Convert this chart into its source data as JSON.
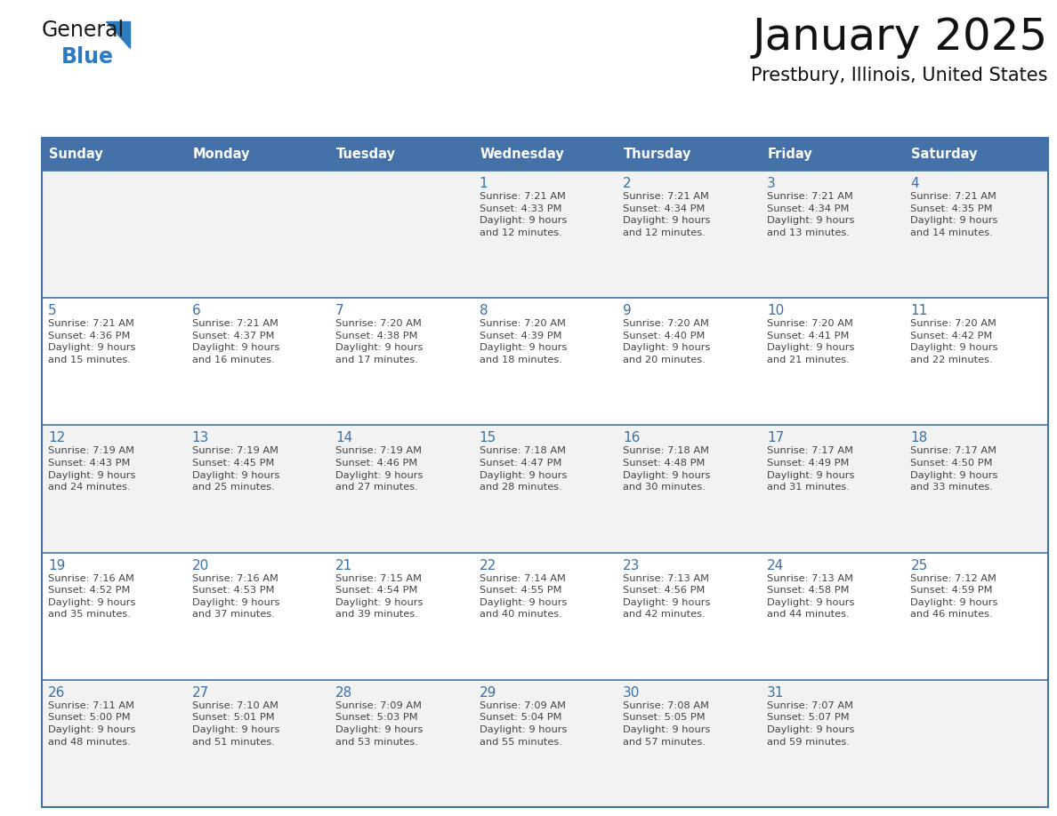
{
  "title": "January 2025",
  "subtitle": "Prestbury, Illinois, United States",
  "header_bg": "#4472a8",
  "header_text_color": "#ffffff",
  "cell_bg_odd": "#f2f2f2",
  "cell_bg_even": "#ffffff",
  "day_number_color": "#3a70a8",
  "cell_text_color": "#444444",
  "row_line_color": "#4472a8",
  "outer_line_color": "#4472a8",
  "logo_text_color": "#1a1a1a",
  "logo_blue_color": "#2e7bbf",
  "logo_triangle_color": "#2e7bbf",
  "days_of_week": [
    "Sunday",
    "Monday",
    "Tuesday",
    "Wednesday",
    "Thursday",
    "Friday",
    "Saturday"
  ],
  "weeks": [
    [
      {
        "day": "",
        "info": ""
      },
      {
        "day": "",
        "info": ""
      },
      {
        "day": "",
        "info": ""
      },
      {
        "day": "1",
        "info": "Sunrise: 7:21 AM\nSunset: 4:33 PM\nDaylight: 9 hours\nand 12 minutes."
      },
      {
        "day": "2",
        "info": "Sunrise: 7:21 AM\nSunset: 4:34 PM\nDaylight: 9 hours\nand 12 minutes."
      },
      {
        "day": "3",
        "info": "Sunrise: 7:21 AM\nSunset: 4:34 PM\nDaylight: 9 hours\nand 13 minutes."
      },
      {
        "day": "4",
        "info": "Sunrise: 7:21 AM\nSunset: 4:35 PM\nDaylight: 9 hours\nand 14 minutes."
      }
    ],
    [
      {
        "day": "5",
        "info": "Sunrise: 7:21 AM\nSunset: 4:36 PM\nDaylight: 9 hours\nand 15 minutes."
      },
      {
        "day": "6",
        "info": "Sunrise: 7:21 AM\nSunset: 4:37 PM\nDaylight: 9 hours\nand 16 minutes."
      },
      {
        "day": "7",
        "info": "Sunrise: 7:20 AM\nSunset: 4:38 PM\nDaylight: 9 hours\nand 17 minutes."
      },
      {
        "day": "8",
        "info": "Sunrise: 7:20 AM\nSunset: 4:39 PM\nDaylight: 9 hours\nand 18 minutes."
      },
      {
        "day": "9",
        "info": "Sunrise: 7:20 AM\nSunset: 4:40 PM\nDaylight: 9 hours\nand 20 minutes."
      },
      {
        "day": "10",
        "info": "Sunrise: 7:20 AM\nSunset: 4:41 PM\nDaylight: 9 hours\nand 21 minutes."
      },
      {
        "day": "11",
        "info": "Sunrise: 7:20 AM\nSunset: 4:42 PM\nDaylight: 9 hours\nand 22 minutes."
      }
    ],
    [
      {
        "day": "12",
        "info": "Sunrise: 7:19 AM\nSunset: 4:43 PM\nDaylight: 9 hours\nand 24 minutes."
      },
      {
        "day": "13",
        "info": "Sunrise: 7:19 AM\nSunset: 4:45 PM\nDaylight: 9 hours\nand 25 minutes."
      },
      {
        "day": "14",
        "info": "Sunrise: 7:19 AM\nSunset: 4:46 PM\nDaylight: 9 hours\nand 27 minutes."
      },
      {
        "day": "15",
        "info": "Sunrise: 7:18 AM\nSunset: 4:47 PM\nDaylight: 9 hours\nand 28 minutes."
      },
      {
        "day": "16",
        "info": "Sunrise: 7:18 AM\nSunset: 4:48 PM\nDaylight: 9 hours\nand 30 minutes."
      },
      {
        "day": "17",
        "info": "Sunrise: 7:17 AM\nSunset: 4:49 PM\nDaylight: 9 hours\nand 31 minutes."
      },
      {
        "day": "18",
        "info": "Sunrise: 7:17 AM\nSunset: 4:50 PM\nDaylight: 9 hours\nand 33 minutes."
      }
    ],
    [
      {
        "day": "19",
        "info": "Sunrise: 7:16 AM\nSunset: 4:52 PM\nDaylight: 9 hours\nand 35 minutes."
      },
      {
        "day": "20",
        "info": "Sunrise: 7:16 AM\nSunset: 4:53 PM\nDaylight: 9 hours\nand 37 minutes."
      },
      {
        "day": "21",
        "info": "Sunrise: 7:15 AM\nSunset: 4:54 PM\nDaylight: 9 hours\nand 39 minutes."
      },
      {
        "day": "22",
        "info": "Sunrise: 7:14 AM\nSunset: 4:55 PM\nDaylight: 9 hours\nand 40 minutes."
      },
      {
        "day": "23",
        "info": "Sunrise: 7:13 AM\nSunset: 4:56 PM\nDaylight: 9 hours\nand 42 minutes."
      },
      {
        "day": "24",
        "info": "Sunrise: 7:13 AM\nSunset: 4:58 PM\nDaylight: 9 hours\nand 44 minutes."
      },
      {
        "day": "25",
        "info": "Sunrise: 7:12 AM\nSunset: 4:59 PM\nDaylight: 9 hours\nand 46 minutes."
      }
    ],
    [
      {
        "day": "26",
        "info": "Sunrise: 7:11 AM\nSunset: 5:00 PM\nDaylight: 9 hours\nand 48 minutes."
      },
      {
        "day": "27",
        "info": "Sunrise: 7:10 AM\nSunset: 5:01 PM\nDaylight: 9 hours\nand 51 minutes."
      },
      {
        "day": "28",
        "info": "Sunrise: 7:09 AM\nSunset: 5:03 PM\nDaylight: 9 hours\nand 53 minutes."
      },
      {
        "day": "29",
        "info": "Sunrise: 7:09 AM\nSunset: 5:04 PM\nDaylight: 9 hours\nand 55 minutes."
      },
      {
        "day": "30",
        "info": "Sunrise: 7:08 AM\nSunset: 5:05 PM\nDaylight: 9 hours\nand 57 minutes."
      },
      {
        "day": "31",
        "info": "Sunrise: 7:07 AM\nSunset: 5:07 PM\nDaylight: 9 hours\nand 59 minutes."
      },
      {
        "day": "",
        "info": ""
      }
    ]
  ]
}
